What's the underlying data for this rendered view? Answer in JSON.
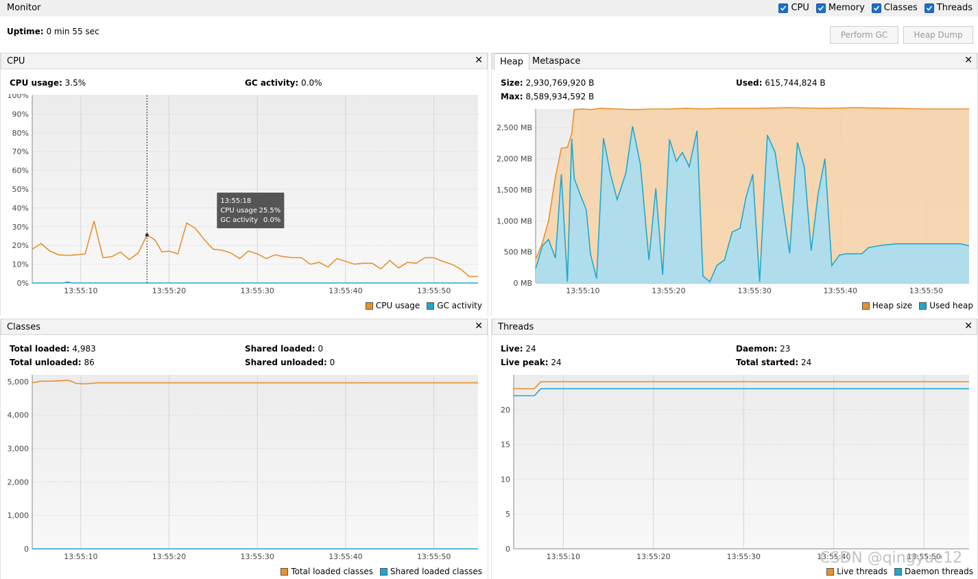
{
  "monitor": {
    "title": "Monitor",
    "checkboxes": [
      {
        "label": "CPU",
        "checked": true
      },
      {
        "label": "Memory",
        "checked": true
      },
      {
        "label": "Classes",
        "checked": true
      },
      {
        "label": "Threads",
        "checked": true
      }
    ],
    "uptime_label": "Uptime:",
    "uptime_value": "0 min 55 sec",
    "perform_gc": "Perform GC",
    "heap_dump": "Heap Dump"
  },
  "colors": {
    "orange": "#e8912c",
    "blue": "#1ea8cf"
  },
  "cpu": {
    "title": "CPU",
    "usage_label": "CPU usage:",
    "usage_value": "3.5%",
    "gc_label": "GC activity:",
    "gc_value": "0.0%",
    "tooltip": {
      "time": "13:55:18",
      "cpu_label": "CPU usage",
      "cpu_value": "25.5%",
      "gc_label": "GC activity",
      "gc_value": "0.0%"
    },
    "legend": [
      "CPU usage",
      "GC activity"
    ],
    "chart_data": {
      "type": "line",
      "ylim": [
        0,
        100
      ],
      "yticks": [
        "0%",
        "10%",
        "20%",
        "30%",
        "40%",
        "50%",
        "60%",
        "70%",
        "80%",
        "90%",
        "100%"
      ],
      "xticks": [
        "13:55:10",
        "13:55:20",
        "13:55:30",
        "13:55:40",
        "13:55:50"
      ],
      "xtick_times": [
        10,
        20,
        30,
        40,
        50
      ],
      "xrange": [
        4.5,
        55
      ],
      "series": [
        {
          "name": "CPU usage",
          "t": [
            4.5,
            5.5,
            6.5,
            7.5,
            8.5,
            9.5,
            10.5,
            11.5,
            12.5,
            13.5,
            14.5,
            15.5,
            16.5,
            17.5,
            18.4,
            19.2,
            20,
            21,
            22,
            23,
            24,
            25,
            26,
            27,
            28,
            29,
            30,
            31,
            32,
            33,
            34,
            35,
            36,
            37,
            38,
            39,
            40,
            41,
            42,
            43,
            44,
            45,
            46,
            47,
            48,
            49,
            50,
            51,
            52,
            53,
            54,
            55
          ],
          "v": [
            18,
            21,
            17,
            15,
            14.7,
            15,
            15.5,
            33,
            13.5,
            14,
            16.5,
            12.5,
            16,
            25.5,
            23,
            16.5,
            17,
            15.5,
            32,
            29,
            23,
            18,
            17.5,
            16,
            13,
            17,
            15.5,
            13,
            15,
            14,
            13.5,
            13.5,
            10,
            11,
            8.5,
            13,
            11.5,
            10,
            10.5,
            10.5,
            7.5,
            12,
            8,
            11,
            10.5,
            13.5,
            13.5,
            11.5,
            10,
            7.5,
            3.5,
            3.5
          ]
        },
        {
          "name": "GC activity",
          "t": [
            4.5,
            8,
            8.5,
            9,
            55
          ],
          "v": [
            0,
            0,
            0.5,
            0,
            0
          ]
        }
      ]
    }
  },
  "heap": {
    "tabs": [
      "Heap",
      "Metaspace"
    ],
    "size_label": "Size:",
    "size_value": "2,930,769,920 B",
    "used_label": "Used:",
    "used_value": "615,744,824 B",
    "max_label": "Max:",
    "max_value": "8,589,934,592 B",
    "legend": [
      "Heap size",
      "Used heap"
    ],
    "chart_data": {
      "type": "area",
      "ylim": [
        0,
        2800
      ],
      "yticks": [
        "0 MB",
        "500 MB",
        "1,000 MB",
        "1,500 MB",
        "2,000 MB",
        "2,500 MB"
      ],
      "ytick_values": [
        0,
        500,
        1000,
        1500,
        2000,
        2500
      ],
      "xticks": [
        "13:55:10",
        "13:55:20",
        "13:55:30",
        "13:55:40",
        "13:55:50"
      ],
      "xtick_times": [
        10,
        20,
        30,
        40,
        50
      ],
      "xrange": [
        4.5,
        55
      ],
      "series": [
        {
          "name": "Heap size",
          "t": [
            4.5,
            5.3,
            6,
            6.8,
            7.5,
            8.2,
            8.7,
            9,
            10,
            11,
            12,
            14,
            16,
            18,
            20,
            22,
            24,
            26,
            30,
            34,
            38,
            42,
            46,
            50,
            55
          ],
          "v": [
            380,
            650,
            1000,
            1700,
            2170,
            2180,
            2400,
            2790,
            2800,
            2790,
            2810,
            2800,
            2790,
            2800,
            2800,
            2810,
            2800,
            2810,
            2810,
            2820,
            2810,
            2820,
            2810,
            2800,
            2800
          ]
        },
        {
          "name": "Used heap",
          "t": [
            4.5,
            5.3,
            6,
            6.8,
            7.5,
            8.2,
            8.7,
            9,
            9.7,
            10.4,
            10.9,
            11.6,
            12.4,
            13.2,
            14,
            15,
            15.8,
            16.7,
            17.7,
            18.5,
            19.3,
            20.1,
            20.9,
            21.6,
            22.4,
            23.3,
            24,
            24.8,
            25.6,
            26.5,
            27.4,
            28.3,
            29,
            29.8,
            30.6,
            31.5,
            32.4,
            33.3,
            34.1,
            35,
            35.8,
            36.6,
            37.4,
            38.2,
            39,
            39.9,
            40.7,
            41.6,
            42.5,
            43.3,
            44.1,
            45,
            45.8,
            46.5,
            47.3,
            48.1,
            48.9,
            49.8,
            50.6,
            51.5,
            52.4,
            53.2,
            54,
            55
          ],
          "v": [
            230,
            600,
            700,
            400,
            1750,
            20,
            2320,
            1680,
            1420,
            1180,
            460,
            70,
            2330,
            1760,
            1340,
            1760,
            2520,
            1910,
            370,
            1520,
            130,
            2310,
            1960,
            2100,
            1870,
            2450,
            110,
            20,
            280,
            370,
            820,
            880,
            1370,
            1750,
            20,
            2380,
            2100,
            1230,
            480,
            2260,
            1870,
            520,
            1420,
            2000,
            280,
            450,
            470,
            470,
            470,
            570,
            590,
            610,
            620,
            630,
            630,
            630,
            630,
            630,
            630,
            630,
            630,
            630,
            630,
            600
          ]
        }
      ]
    }
  },
  "classes": {
    "title": "Classes",
    "total_loaded_label": "Total loaded:",
    "total_loaded_value": "4,983",
    "shared_loaded_label": "Shared loaded:",
    "shared_loaded_value": "0",
    "total_unloaded_label": "Total unloaded:",
    "total_unloaded_value": "86",
    "shared_unloaded_label": "Shared unloaded:",
    "shared_unloaded_value": "0",
    "legend": [
      "Total loaded classes",
      "Shared loaded classes"
    ],
    "chart_data": {
      "type": "line",
      "ylim": [
        0,
        5200
      ],
      "yticks": [
        "0",
        "1,000",
        "2,000",
        "3,000",
        "4,000",
        "5,000"
      ],
      "ytick_values": [
        0,
        1000,
        2000,
        3000,
        4000,
        5000
      ],
      "xticks": [
        "13:55:10",
        "13:55:20",
        "13:55:30",
        "13:55:40",
        "13:55:50"
      ],
      "xtick_times": [
        10,
        20,
        30,
        40,
        50
      ],
      "xrange": [
        4.5,
        55
      ],
      "series": [
        {
          "name": "Total loaded classes",
          "t": [
            4.5,
            5.5,
            6.5,
            7.5,
            8.5,
            9,
            9.5,
            10.5,
            12,
            55
          ],
          "v": [
            4960,
            5010,
            5010,
            5020,
            5040,
            5000,
            4940,
            4930,
            4960,
            4960
          ]
        },
        {
          "name": "Shared loaded classes",
          "t": [
            4.5,
            55
          ],
          "v": [
            0,
            0
          ]
        }
      ]
    }
  },
  "threads": {
    "title": "Threads",
    "live_label": "Live:",
    "live_value": "24",
    "daemon_label": "Daemon:",
    "daemon_value": "23",
    "live_peak_label": "Live peak:",
    "live_peak_value": "24",
    "total_started_label": "Total started:",
    "total_started_value": "24",
    "legend": [
      "Live threads",
      "Daemon threads"
    ],
    "chart_data": {
      "type": "line",
      "ylim": [
        0,
        25
      ],
      "yticks": [
        "0",
        "5",
        "10",
        "15",
        "20"
      ],
      "ytick_values": [
        0,
        5,
        10,
        15,
        20
      ],
      "xticks": [
        "13:55:10",
        "13:55:20",
        "13:55:30",
        "13:55:40",
        "13:55:50"
      ],
      "xtick_times": [
        10,
        20,
        30,
        40,
        50
      ],
      "xrange": [
        4.5,
        55
      ],
      "series": [
        {
          "name": "Live threads",
          "t": [
            4.5,
            6.8,
            7.5,
            55
          ],
          "v": [
            23,
            23,
            24,
            24
          ]
        },
        {
          "name": "Daemon threads",
          "t": [
            4.5,
            6.8,
            7.5,
            55
          ],
          "v": [
            22,
            22,
            23,
            23
          ]
        }
      ]
    }
  },
  "watermark": "CSDN @qingyue12"
}
